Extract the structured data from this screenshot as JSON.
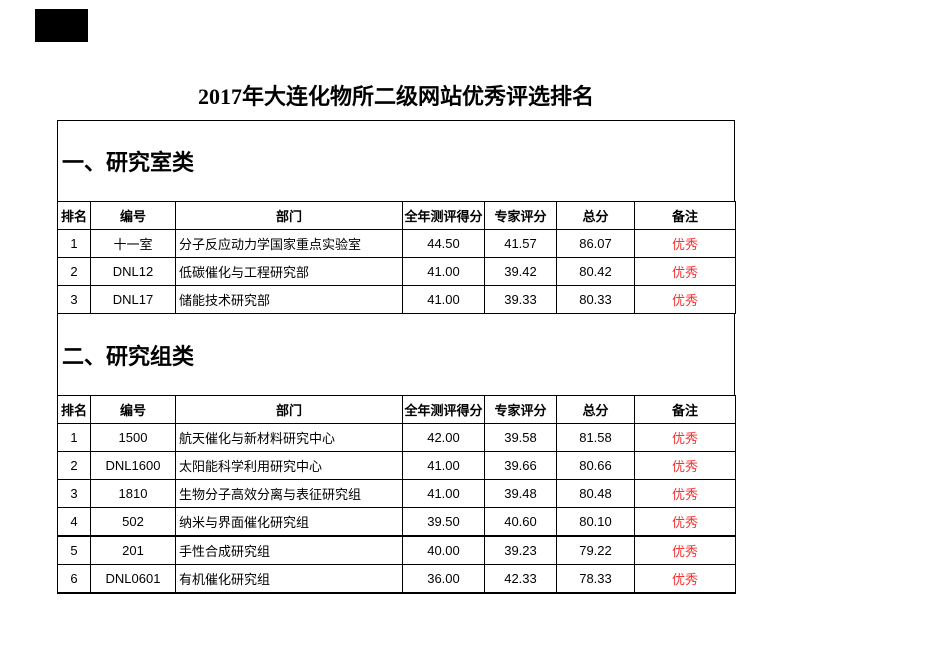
{
  "page": {
    "title": "2017年大连化物所二级网站优秀评选排名"
  },
  "colors": {
    "remark_red": "#fa2f2f",
    "border_black": "#000000",
    "page_background": "#ffffff"
  },
  "columns": [
    "排名",
    "编号",
    "部门",
    "全年测评得分",
    "专家评分",
    "总分",
    "备注"
  ],
  "sections": [
    {
      "heading": "一、研究室类",
      "rows": [
        [
          "1",
          "十一室",
          "分子反应动力学国家重点实验室",
          "44.50",
          "41.57",
          "86.07",
          "优秀"
        ],
        [
          "2",
          "DNL12",
          "低碳催化与工程研究部",
          "41.00",
          "39.42",
          "80.42",
          "优秀"
        ],
        [
          "3",
          "DNL17",
          "储能技术研究部",
          "41.00",
          "39.33",
          "80.33",
          "优秀"
        ]
      ]
    },
    {
      "heading": "二、研究组类",
      "rows": [
        [
          "1",
          "1500",
          "航天催化与新材料研究中心",
          "42.00",
          "39.58",
          "81.58",
          "优秀"
        ],
        [
          "2",
          "DNL1600",
          "太阳能科学利用研究中心",
          "41.00",
          "39.66",
          "80.66",
          "优秀"
        ],
        [
          "3",
          "1810",
          "生物分子高效分离与表征研究组",
          "41.00",
          "39.48",
          "80.48",
          "优秀"
        ],
        [
          "4",
          "502",
          "纳米与界面催化研究组",
          "39.50",
          "40.60",
          "80.10",
          "优秀"
        ],
        [
          "5",
          "201",
          "手性合成研究组",
          "40.00",
          "39.23",
          "79.22",
          "优秀"
        ],
        [
          "6",
          "DNL0601",
          "有机催化研究组",
          "36.00",
          "42.33",
          "78.33",
          "优秀"
        ]
      ]
    }
  ]
}
